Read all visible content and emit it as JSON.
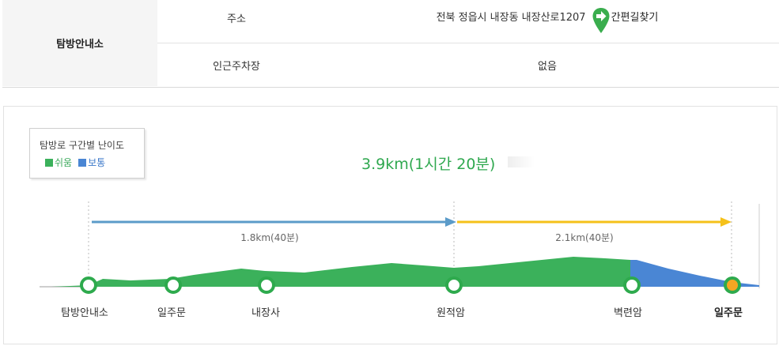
{
  "info": {
    "header": "탐방안내소",
    "address_label": "주소",
    "address_value": "전북 정읍시 내장동 내장산로1207",
    "nav_button_label": "간편길찾기",
    "parking_label": "인근주차장",
    "parking_value": "없음"
  },
  "legend": {
    "title": "탐방로 구간별 난이도",
    "items": [
      {
        "label": "쉬움",
        "color": "#3bb15b"
      },
      {
        "label": "보통",
        "color": "#4a86d4"
      }
    ]
  },
  "route": {
    "total": "3.9km(1시간 20분)",
    "segments": [
      {
        "label": "1.8km(40분)",
        "color": "#5b9bc9"
      },
      {
        "label": "2.1km(40분)",
        "color": "#f5c11a"
      }
    ],
    "stops": [
      "탐방안내소",
      "일주문",
      "내장사",
      "원적암",
      "벽련암",
      "일주문"
    ]
  },
  "colors": {
    "easy": "#3bb15b",
    "normal": "#4a86d4",
    "arrow1": "#5b9bc9",
    "arrow2": "#f5c11a",
    "endpoint": "#f5a623"
  }
}
